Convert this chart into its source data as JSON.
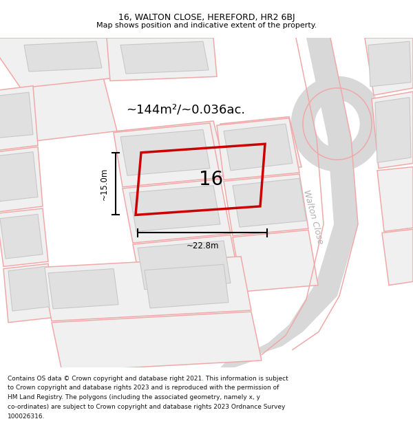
{
  "title_line1": "16, WALTON CLOSE, HEREFORD, HR2 6BJ",
  "title_line2": "Map shows position and indicative extent of the property.",
  "area_label": "~144m²/~0.036ac.",
  "number_label": "16",
  "width_label": "~22.8m",
  "height_label": "~15.0m",
  "street_label": "Walton Close",
  "footer_lines": [
    "Contains OS data © Crown copyright and database right 2021. This information is subject",
    "to Crown copyright and database rights 2023 and is reproduced with the permission of",
    "HM Land Registry. The polygons (including the associated geometry, namely x, y",
    "co-ordinates) are subject to Crown copyright and database rights 2023 Ordnance Survey",
    "100026316."
  ],
  "bg_color": "#ffffff",
  "map_bg": "#ffffff",
  "plot_fill": "#f0f0f0",
  "building_fill": "#e0e0e0",
  "building_edge": "#c8c8c8",
  "pink": "#f0a8a8",
  "red": "#cc0000",
  "road_gray": "#d8d8d8",
  "road_text": "#b0b0b0",
  "sep_color": "#cccccc",
  "title_fs": 9,
  "subtitle_fs": 8,
  "area_fs": 13,
  "num_fs": 20,
  "dim_fs": 8.5,
  "street_fs": 9,
  "footer_fs": 6.5
}
